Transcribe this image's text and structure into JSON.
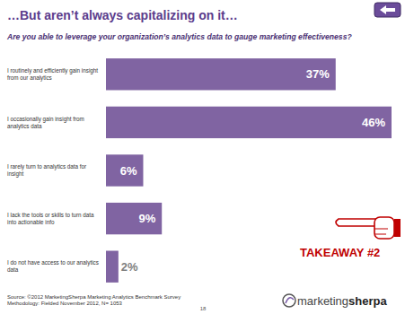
{
  "chart_data": {
    "type": "bar",
    "orientation": "horizontal",
    "title": "…But aren’t always capitalizing on it…",
    "subtitle": "Are you able to leverage your organization’s analytics data to gauge marketing effectiveness?",
    "categories": [
      "I routinely and efficiently gain insight from our analytics",
      "I occasionally gain insight from analytics data",
      "I rarely turn to analytics data for insight",
      "I lack the tools or skills to turn data into actionable info",
      "I do not have access to our analytics data"
    ],
    "values": [
      37,
      46,
      6,
      9,
      2
    ],
    "value_labels": [
      "37%",
      "46%",
      "6%",
      "9%",
      "2%"
    ],
    "data_labels": true,
    "tick_labels": "y",
    "grid": false,
    "color": "#8064a2",
    "xlim": [
      0,
      46
    ],
    "annotations": [
      "TAKEAWAY #2"
    ]
  },
  "slide": {
    "source": "Source: ©2012 MarketingSherpa Marketing Analytics Benchmark Survey",
    "methodology": "Methodology: Fielded November 2012, N= 1053",
    "page_number": "18",
    "logo": [
      "marketing",
      "sherpa"
    ]
  }
}
